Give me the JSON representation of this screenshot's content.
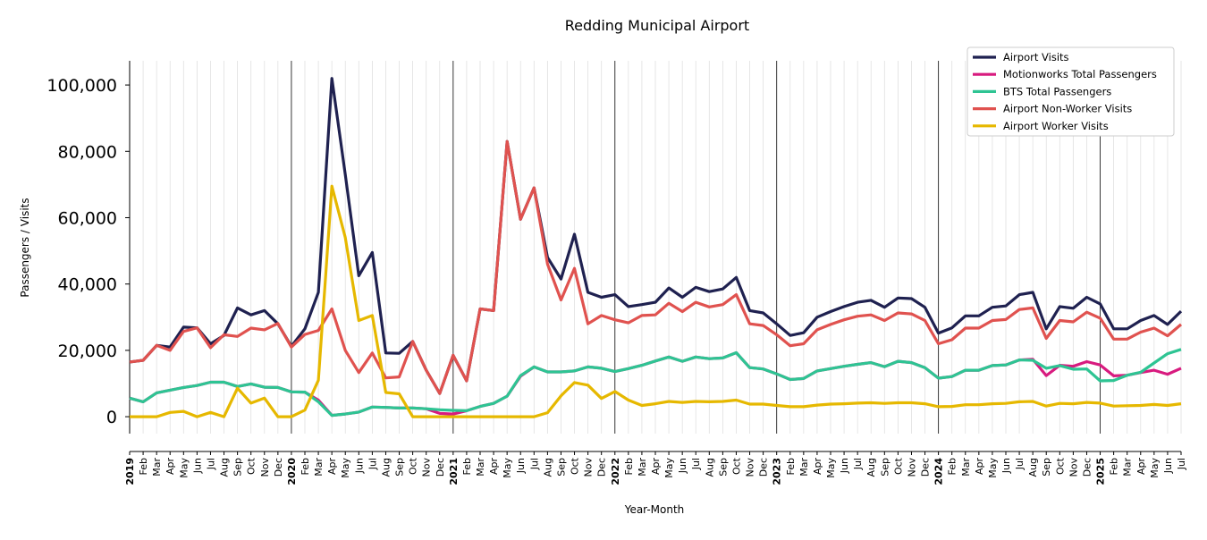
{
  "chart_data": {
    "type": "line",
    "title": "Redding Municipal Airport",
    "xlabel": "Year-Month",
    "ylabel": "Passengers / Visits",
    "ylim": [
      -5100,
      107300
    ],
    "yticks": [
      0,
      20000,
      40000,
      60000,
      80000,
      100000
    ],
    "ytick_labels": [
      "0",
      "20,000",
      "40,000",
      "60,000",
      "80,000",
      "100,000"
    ],
    "grid": "vertical, monthly; darker lines at each January",
    "legend_position": "top-right",
    "categories": [
      "2019",
      "Feb",
      "Mar",
      "Apr",
      "May",
      "Jun",
      "Jul",
      "Aug",
      "Sep",
      "Oct",
      "Nov",
      "Dec",
      "2020",
      "Feb",
      "Mar",
      "Apr",
      "May",
      "Jun",
      "Jul",
      "Aug",
      "Sep",
      "Oct",
      "Nov",
      "Dec",
      "2021",
      "Feb",
      "Mar",
      "Apr",
      "May",
      "Jun",
      "Jul",
      "Aug",
      "Sep",
      "Oct",
      "Nov",
      "Dec",
      "2022",
      "Feb",
      "Mar",
      "Apr",
      "May",
      "Jun",
      "Jul",
      "Aug",
      "Sep",
      "Oct",
      "Nov",
      "Dec",
      "2023",
      "Feb",
      "Mar",
      "Apr",
      "May",
      "Jun",
      "Jul",
      "Aug",
      "Sep",
      "Oct",
      "Nov",
      "Dec",
      "2024",
      "Feb",
      "Mar",
      "Apr",
      "May",
      "Jun",
      "Jul",
      "Aug",
      "Sep",
      "Oct",
      "Nov",
      "Dec",
      "2025",
      "Feb",
      "Mar",
      "Apr",
      "May",
      "Jun",
      "Jul"
    ],
    "series": [
      {
        "name": "Airport Visits",
        "color": "#1f2150",
        "values": [
          16500,
          17000,
          21500,
          21000,
          27000,
          26800,
          22000,
          24500,
          32800,
          30700,
          32000,
          28000,
          21200,
          26500,
          37500,
          102000,
          73000,
          42500,
          49500,
          19200,
          19100,
          22700,
          14000,
          7000,
          18500,
          10800,
          32500,
          32000,
          83000,
          59500,
          69000,
          48000,
          41500,
          55000,
          37500,
          36000,
          36800,
          33200,
          33800,
          34500,
          38800,
          36000,
          39000,
          37700,
          38500,
          42000,
          32000,
          31300,
          28000,
          24500,
          25300,
          30000,
          31700,
          33200,
          34500,
          35100,
          33000,
          35800,
          35600,
          33000,
          25200,
          26800,
          30400,
          30400,
          33000,
          33400,
          36800,
          37500,
          26500,
          33200,
          32700,
          36000,
          34000,
          26500,
          26500,
          29000,
          30500,
          27800,
          31800
        ]
      },
      {
        "name": "Motionworks Total Passengers",
        "color": "#d81b7f",
        "values": [
          5600,
          4500,
          7200,
          8000,
          8800,
          9400,
          10400,
          10400,
          9100,
          9900,
          8900,
          8800,
          7500,
          7400,
          5000,
          400,
          800,
          1400,
          2900,
          2800,
          2600,
          2600,
          2400,
          1000,
          800,
          1800,
          3100,
          4000,
          6200,
          12200,
          15000,
          13500,
          13500,
          13800,
          15000,
          14600,
          13600,
          14500,
          15500,
          16800,
          18000,
          16700,
          18000,
          17500,
          17700,
          19300,
          14800,
          14400,
          12900,
          11200,
          11500,
          13800,
          14500,
          15200,
          15800,
          16300,
          15100,
          16700,
          16300,
          14800,
          11600,
          12100,
          14000,
          14000,
          15400,
          15600,
          17100,
          17300,
          12400,
          15500,
          15200,
          16600,
          15600,
          12300,
          12500,
          13300,
          14000,
          12800,
          14600
        ]
      },
      {
        "name": "BTS Total Passengers",
        "color": "#2ec493",
        "values": [
          5600,
          4500,
          7200,
          8000,
          8800,
          9400,
          10400,
          10400,
          9100,
          9900,
          8900,
          8800,
          7500,
          7400,
          4500,
          400,
          800,
          1400,
          2900,
          2800,
          2600,
          2600,
          2400,
          2100,
          1900,
          1800,
          3100,
          4000,
          6200,
          12400,
          15000,
          13500,
          13500,
          13800,
          15000,
          14600,
          13600,
          14500,
          15500,
          16800,
          18000,
          16700,
          18000,
          17500,
          17700,
          19300,
          14800,
          14400,
          12900,
          11200,
          11500,
          13800,
          14500,
          15200,
          15800,
          16300,
          15100,
          16700,
          16300,
          14800,
          11600,
          12100,
          14000,
          14000,
          15400,
          15600,
          17100,
          17000,
          14600,
          15400,
          14300,
          14400,
          10800,
          10900,
          12500,
          13400,
          16200,
          19000,
          20300
        ]
      },
      {
        "name": "Airport Non-Worker Visits",
        "color": "#e0524f",
        "values": [
          16500,
          17000,
          21500,
          20000,
          25700,
          26800,
          20800,
          24700,
          24200,
          26700,
          26200,
          28100,
          21000,
          24800,
          26000,
          32500,
          20000,
          13300,
          19200,
          11700,
          12000,
          22700,
          14000,
          7000,
          18500,
          10800,
          32500,
          32000,
          83000,
          59500,
          69000,
          46000,
          35200,
          44700,
          28000,
          30500,
          29200,
          28300,
          30500,
          30700,
          34200,
          31700,
          34500,
          33100,
          33800,
          36800,
          28000,
          27500,
          24700,
          21400,
          22000,
          26200,
          27800,
          29200,
          30300,
          30700,
          29000,
          31300,
          31000,
          29000,
          22000,
          23200,
          26700,
          26700,
          29000,
          29300,
          32300,
          32800,
          23600,
          29000,
          28600,
          31500,
          29700,
          23400,
          23400,
          25500,
          26700,
          24400,
          27800
        ]
      },
      {
        "name": "Airport Worker Visits",
        "color": "#e6b800",
        "values": [
          0,
          0,
          0,
          1300,
          1600,
          0,
          1300,
          0,
          8600,
          4100,
          5600,
          0,
          0,
          2000,
          11000,
          69500,
          54000,
          29000,
          30500,
          7300,
          6900,
          0,
          0,
          0,
          0,
          0,
          0,
          0,
          0,
          0,
          0,
          1200,
          6300,
          10300,
          9500,
          5500,
          7600,
          5000,
          3400,
          3900,
          4600,
          4300,
          4600,
          4500,
          4600,
          5000,
          3800,
          3800,
          3400,
          3000,
          3000,
          3500,
          3800,
          3900,
          4100,
          4200,
          4000,
          4200,
          4200,
          3900,
          3000,
          3100,
          3600,
          3600,
          3900,
          4000,
          4500,
          4600,
          3200,
          4000,
          3900,
          4300,
          4100,
          3200,
          3300,
          3400,
          3700,
          3400,
          3900
        ]
      }
    ]
  }
}
